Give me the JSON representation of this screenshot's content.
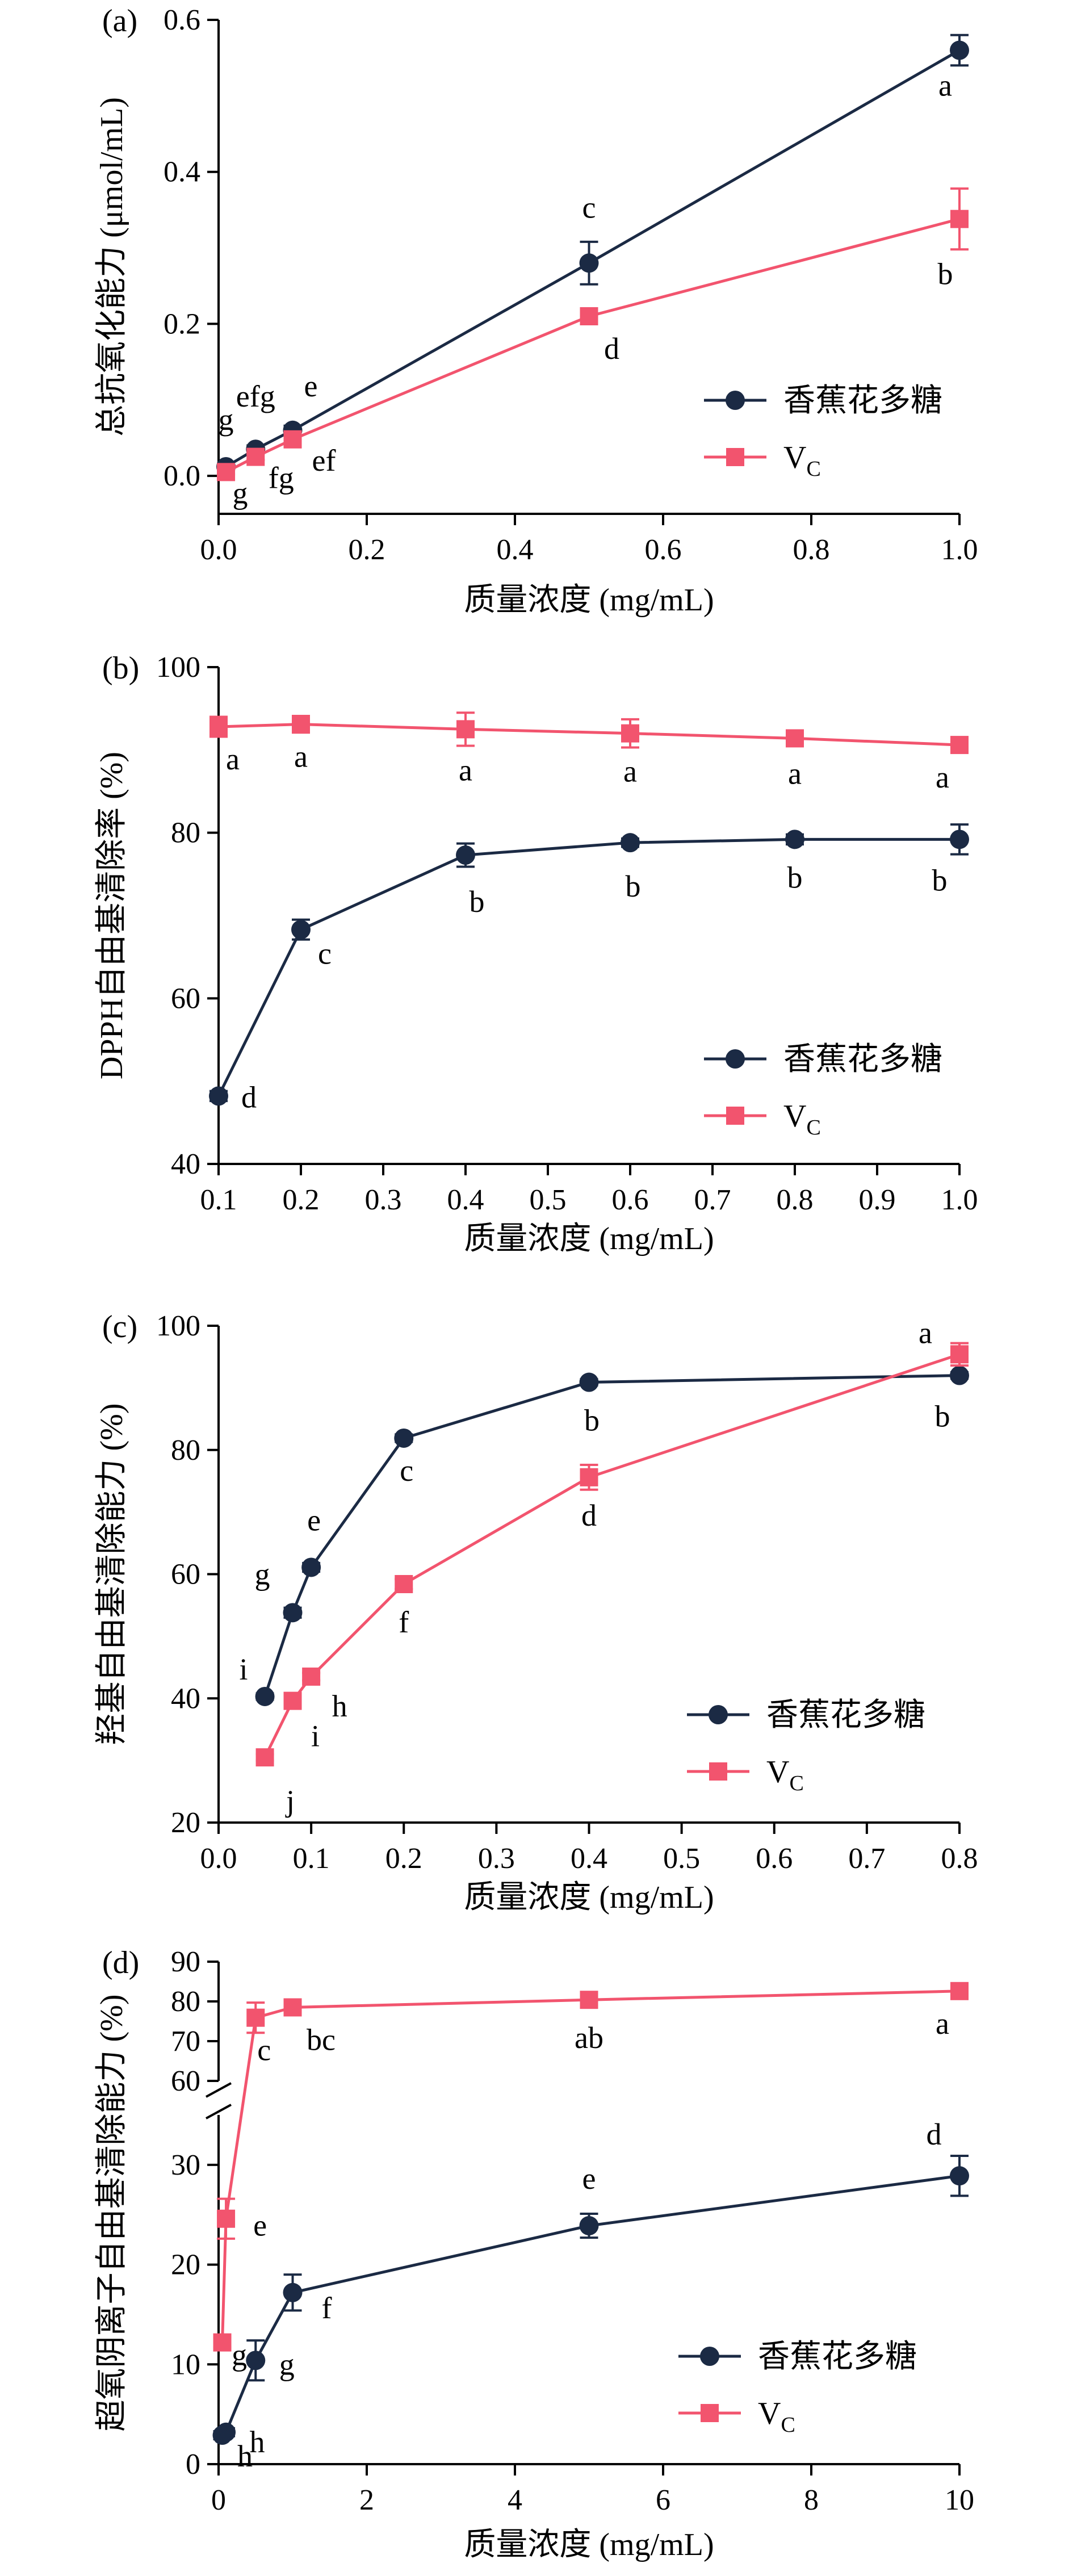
{
  "chart_data": [
    {
      "type": "line",
      "panel_label": "(a)",
      "title": "",
      "xlabel": "质量浓度 (mg/mL)",
      "ylabel": "总抗氧化能力 (μmol/mL)",
      "xlim": [
        0,
        1.0
      ],
      "ylim": [
        -0.05,
        0.6
      ],
      "xticks": [
        "0.0",
        "0.2",
        "0.4",
        "0.6",
        "0.8",
        "1.0"
      ],
      "yticks": [
        "0.0",
        "0.2",
        "0.4",
        "0.6"
      ],
      "grid": false,
      "legend_position": "center-right",
      "series": [
        {
          "name": "香蕉花多糖",
          "color": "#1b2a44",
          "marker": "circle",
          "x": [
            0.01,
            0.05,
            0.1,
            0.5,
            1.0
          ],
          "values": [
            0.012,
            0.035,
            0.06,
            0.28,
            0.56
          ],
          "errors": [
            0.004,
            0.005,
            0.006,
            0.028,
            0.02
          ],
          "letters": [
            "g",
            "efg",
            "e",
            "c",
            "a"
          ]
        },
        {
          "name": "V",
          "name_sub": "C",
          "color": "#f2546e",
          "marker": "square",
          "x": [
            0.01,
            0.05,
            0.1,
            0.5,
            1.0
          ],
          "values": [
            0.005,
            0.025,
            0.048,
            0.21,
            0.338
          ],
          "errors": [
            0.003,
            0.004,
            0.005,
            0.008,
            0.04
          ],
          "letters": [
            "g",
            "fg",
            "ef",
            "d",
            "b"
          ]
        }
      ]
    },
    {
      "type": "line",
      "panel_label": "(b)",
      "title": "",
      "xlabel": "质量浓度 (mg/mL)",
      "ylabel": "DPPH自由基清除率 (%)",
      "xlim": [
        0.1,
        1.0
      ],
      "ylim": [
        40,
        100
      ],
      "xticks": [
        "0.1",
        "0.2",
        "0.3",
        "0.4",
        "0.5",
        "0.6",
        "0.7",
        "0.8",
        "0.9",
        "1.0"
      ],
      "yticks": [
        "40",
        "60",
        "80",
        "100"
      ],
      "grid": false,
      "legend_position": "bottom-right",
      "series": [
        {
          "name": "香蕉花多糖",
          "color": "#1b2a44",
          "marker": "circle",
          "x": [
            0.1,
            0.2,
            0.4,
            0.6,
            0.8,
            1.0
          ],
          "values": [
            48.2,
            68.3,
            77.3,
            78.8,
            79.2,
            79.2
          ],
          "errors": [
            0.6,
            1.2,
            1.4,
            0.5,
            0.6,
            1.8
          ],
          "letters": [
            "d",
            "c",
            "b",
            "b",
            "b",
            "b"
          ]
        },
        {
          "name": "V",
          "name_sub": "C",
          "color": "#f2546e",
          "marker": "square",
          "x": [
            0.1,
            0.2,
            0.4,
            0.6,
            0.8,
            1.0
          ],
          "values": [
            92.8,
            93.1,
            92.5,
            92.0,
            91.4,
            90.6
          ],
          "errors": [
            1.2,
            1.0,
            2.0,
            1.7,
            0.8,
            0.7
          ],
          "letters": [
            "a",
            "a",
            "a",
            "a",
            "a",
            "a"
          ]
        }
      ]
    },
    {
      "type": "line",
      "panel_label": "(c)",
      "title": "",
      "xlabel": "质量浓度 (mg/mL)",
      "ylabel": "羟基自由基清除能力 (%)",
      "xlim": [
        0.0,
        0.8
      ],
      "ylim": [
        20,
        100
      ],
      "xticks": [
        "0.0",
        "0.1",
        "0.2",
        "0.3",
        "0.4",
        "0.5",
        "0.6",
        "0.7",
        "0.8"
      ],
      "yticks": [
        "20",
        "40",
        "60",
        "80",
        "100"
      ],
      "grid": false,
      "legend_position": "bottom-right",
      "series": [
        {
          "name": "香蕉花多糖",
          "color": "#1b2a44",
          "marker": "circle",
          "x": [
            0.05,
            0.08,
            0.1,
            0.2,
            0.4,
            0.8
          ],
          "values": [
            40.3,
            53.8,
            61.1,
            81.9,
            90.9,
            92.0
          ],
          "errors": [
            0.5,
            0.8,
            0.7,
            0.6,
            0.5,
            0.5
          ],
          "letters": [
            "i",
            "g",
            "e",
            "c",
            "b",
            "b"
          ]
        },
        {
          "name": "V",
          "name_sub": "C",
          "color": "#f2546e",
          "marker": "square",
          "x": [
            0.05,
            0.08,
            0.1,
            0.2,
            0.4,
            0.8
          ],
          "values": [
            30.5,
            39.6,
            43.5,
            58.4,
            75.6,
            95.4
          ],
          "errors": [
            0.5,
            0.8,
            0.6,
            0.8,
            2.0,
            1.8
          ],
          "letters": [
            "j",
            "i",
            "h",
            "f",
            "d",
            "a"
          ]
        }
      ]
    },
    {
      "type": "line",
      "panel_label": "(d)",
      "title": "",
      "xlabel": "质量浓度 (mg/mL)",
      "ylabel": "超氧阴离子自由基清除能力 (%)",
      "xlim": [
        0,
        10
      ],
      "ylim_lower": [
        0,
        35
      ],
      "ylim_upper": [
        60,
        90
      ],
      "broken_y_axis": true,
      "xticks": [
        "0",
        "2",
        "4",
        "6",
        "8",
        "10"
      ],
      "yticks_lower": [
        "0",
        "10",
        "20",
        "30"
      ],
      "yticks_upper": [
        "60",
        "70",
        "80",
        "90"
      ],
      "grid": false,
      "legend_position": "bottom-right",
      "series": [
        {
          "name": "香蕉花多糖",
          "color": "#1b2a44",
          "marker": "circle",
          "x": [
            0.05,
            0.1,
            0.5,
            1.0,
            5.0,
            10.0
          ],
          "values": [
            2.9,
            3.2,
            10.4,
            17.2,
            23.9,
            28.9
          ],
          "errors": [
            0.4,
            0.4,
            2.0,
            1.8,
            1.2,
            2.0
          ],
          "letters": [
            "h",
            "h",
            "g",
            "f",
            "e",
            "d"
          ]
        },
        {
          "name": "V",
          "name_sub": "C",
          "color": "#f2546e",
          "marker": "square",
          "x": [
            0.05,
            0.1,
            0.5,
            1.0,
            5.0,
            10.0
          ],
          "values": [
            12.2,
            24.6,
            75.9,
            78.5,
            80.4,
            82.6
          ],
          "errors": [
            0.5,
            2.0,
            3.8,
            2.0,
            1.5,
            1.2
          ],
          "letters": [
            "g",
            "e",
            "c",
            "bc",
            "ab",
            "a"
          ]
        }
      ]
    }
  ]
}
